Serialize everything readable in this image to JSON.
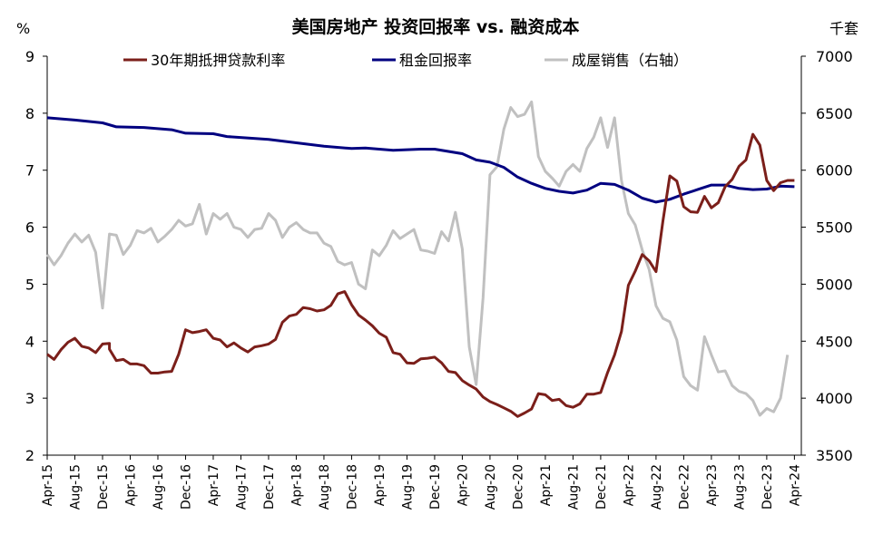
{
  "chart_data": {
    "type": "line",
    "title": "美国房地产 投资回报率 vs. 融资成本",
    "y_left_unit": "%",
    "y_right_unit": "千套",
    "ylim_left": [
      2,
      9
    ],
    "ylim_right": [
      3500,
      7000
    ],
    "y_left_ticks": [
      "2",
      "3",
      "4",
      "5",
      "6",
      "7",
      "8",
      "9"
    ],
    "y_right_ticks": [
      "3500",
      "4000",
      "4500",
      "5000",
      "5500",
      "6000",
      "6500",
      "7000"
    ],
    "x_ticks": [
      "Apr-15",
      "Aug-15",
      "Dec-15",
      "Apr-16",
      "Aug-16",
      "Dec-16",
      "Apr-17",
      "Aug-17",
      "Dec-17",
      "Apr-18",
      "Aug-18",
      "Dec-18",
      "Apr-19",
      "Aug-19",
      "Dec-19",
      "Apr-20",
      "Aug-20",
      "Dec-20",
      "Apr-21",
      "Aug-21",
      "Dec-21",
      "Apr-22",
      "Aug-22",
      "Dec-22",
      "Apr-23",
      "Aug-23",
      "Dec-23",
      "Apr-24"
    ],
    "x_start": "2015-04",
    "x_end": "2024-05",
    "legend_position": "top",
    "series": [
      {
        "name": "30年期抵押贷款利率",
        "axis": "left",
        "color": "#7B1F1A",
        "points": [
          [
            "2015-04",
            3.77
          ],
          [
            "2015-05",
            3.68
          ],
          [
            "2015-06",
            3.85
          ],
          [
            "2015-07",
            3.98
          ],
          [
            "2015-08",
            4.05
          ],
          [
            "2015-09",
            3.91
          ],
          [
            "2015-10",
            3.88
          ],
          [
            "2015-11",
            3.8
          ],
          [
            "2015-12",
            3.95
          ],
          [
            "2015-13",
            3.96
          ],
          [
            "2016-01",
            3.86
          ],
          [
            "2016-02",
            3.66
          ],
          [
            "2016-03",
            3.68
          ],
          [
            "2016-04",
            3.6
          ],
          [
            "2016-05",
            3.6
          ],
          [
            "2016-06",
            3.57
          ],
          [
            "2016-07",
            3.44
          ],
          [
            "2016-08",
            3.44
          ],
          [
            "2016-09",
            3.46
          ],
          [
            "2016-10",
            3.47
          ],
          [
            "2016-11",
            3.77
          ],
          [
            "2016-12",
            4.2
          ],
          [
            "2017-01",
            4.15
          ],
          [
            "2017-02",
            4.17
          ],
          [
            "2017-03",
            4.2
          ],
          [
            "2017-04",
            4.05
          ],
          [
            "2017-05",
            4.02
          ],
          [
            "2017-06",
            3.9
          ],
          [
            "2017-07",
            3.97
          ],
          [
            "2017-08",
            3.88
          ],
          [
            "2017-09",
            3.81
          ],
          [
            "2017-10",
            3.9
          ],
          [
            "2017-11",
            3.92
          ],
          [
            "2017-12",
            3.95
          ],
          [
            "2018-01",
            4.03
          ],
          [
            "2018-02",
            4.33
          ],
          [
            "2018-03",
            4.44
          ],
          [
            "2018-04",
            4.47
          ],
          [
            "2018-05",
            4.59
          ],
          [
            "2018-06",
            4.57
          ],
          [
            "2018-07",
            4.53
          ],
          [
            "2018-08",
            4.55
          ],
          [
            "2018-09",
            4.63
          ],
          [
            "2018-10",
            4.83
          ],
          [
            "2018-11",
            4.87
          ],
          [
            "2018-12",
            4.64
          ],
          [
            "2019-01",
            4.46
          ],
          [
            "2019-02",
            4.37
          ],
          [
            "2019-03",
            4.27
          ],
          [
            "2019-04",
            4.14
          ],
          [
            "2019-05",
            4.07
          ],
          [
            "2019-06",
            3.8
          ],
          [
            "2019-07",
            3.77
          ],
          [
            "2019-08",
            3.62
          ],
          [
            "2019-09",
            3.61
          ],
          [
            "2019-10",
            3.69
          ],
          [
            "2019-11",
            3.7
          ],
          [
            "2019-12",
            3.72
          ],
          [
            "2020-01",
            3.62
          ],
          [
            "2020-02",
            3.47
          ],
          [
            "2020-03",
            3.45
          ],
          [
            "2020-04",
            3.31
          ],
          [
            "2020-05",
            3.23
          ],
          [
            "2020-06",
            3.16
          ],
          [
            "2020-07",
            3.02
          ],
          [
            "2020-08",
            2.94
          ],
          [
            "2020-09",
            2.89
          ],
          [
            "2020-10",
            2.83
          ],
          [
            "2020-11",
            2.77
          ],
          [
            "2020-12",
            2.68
          ],
          [
            "2021-01",
            2.74
          ],
          [
            "2021-02",
            2.81
          ],
          [
            "2021-03",
            3.08
          ],
          [
            "2021-04",
            3.06
          ],
          [
            "2021-05",
            2.96
          ],
          [
            "2021-06",
            2.98
          ],
          [
            "2021-07",
            2.87
          ],
          [
            "2021-08",
            2.84
          ],
          [
            "2021-09",
            2.9
          ],
          [
            "2021-10",
            3.07
          ],
          [
            "2021-11",
            3.07
          ],
          [
            "2021-12",
            3.1
          ],
          [
            "2022-01",
            3.45
          ],
          [
            "2022-02",
            3.76
          ],
          [
            "2022-03",
            4.17
          ],
          [
            "2022-04",
            4.98
          ],
          [
            "2022-05",
            5.23
          ],
          [
            "2022-06",
            5.52
          ],
          [
            "2022-07",
            5.41
          ],
          [
            "2022-08",
            5.22
          ],
          [
            "2022-09",
            6.11
          ],
          [
            "2022-10",
            6.9
          ],
          [
            "2022-11",
            6.81
          ],
          [
            "2022-12",
            6.36
          ],
          [
            "2023-01",
            6.27
          ],
          [
            "2023-02",
            6.26
          ],
          [
            "2023-03",
            6.54
          ],
          [
            "2023-04",
            6.34
          ],
          [
            "2023-05",
            6.43
          ],
          [
            "2023-06",
            6.71
          ],
          [
            "2023-07",
            6.84
          ],
          [
            "2023-08",
            7.07
          ],
          [
            "2023-09",
            7.18
          ],
          [
            "2023-10",
            7.63
          ],
          [
            "2023-11",
            7.44
          ],
          [
            "2023-12",
            6.82
          ],
          [
            "2024-01",
            6.64
          ],
          [
            "2024-02",
            6.78
          ],
          [
            "2024-03",
            6.82
          ],
          [
            "2024-04",
            6.82
          ]
        ]
      },
      {
        "name": "租金回报率",
        "axis": "left",
        "color": "#000080",
        "points": [
          [
            "2015-04",
            7.92
          ],
          [
            "2015-08",
            7.88
          ],
          [
            "2015-12",
            7.83
          ],
          [
            "2016-02",
            7.76
          ],
          [
            "2016-06",
            7.75
          ],
          [
            "2016-10",
            7.71
          ],
          [
            "2016-12",
            7.65
          ],
          [
            "2017-04",
            7.64
          ],
          [
            "2017-06",
            7.59
          ],
          [
            "2017-12",
            7.54
          ],
          [
            "2018-04",
            7.48
          ],
          [
            "2018-08",
            7.42
          ],
          [
            "2018-12",
            7.38
          ],
          [
            "2019-02",
            7.39
          ],
          [
            "2019-06",
            7.35
          ],
          [
            "2019-10",
            7.37
          ],
          [
            "2019-12",
            7.37
          ],
          [
            "2020-04",
            7.29
          ],
          [
            "2020-06",
            7.18
          ],
          [
            "2020-08",
            7.14
          ],
          [
            "2020-10",
            7.05
          ],
          [
            "2020-12",
            6.88
          ],
          [
            "2021-02",
            6.77
          ],
          [
            "2021-04",
            6.68
          ],
          [
            "2021-06",
            6.63
          ],
          [
            "2021-08",
            6.6
          ],
          [
            "2021-10",
            6.65
          ],
          [
            "2021-12",
            6.77
          ],
          [
            "2022-02",
            6.75
          ],
          [
            "2022-04",
            6.65
          ],
          [
            "2022-06",
            6.51
          ],
          [
            "2022-08",
            6.44
          ],
          [
            "2022-10",
            6.49
          ],
          [
            "2022-12",
            6.58
          ],
          [
            "2023-02",
            6.66
          ],
          [
            "2023-04",
            6.74
          ],
          [
            "2023-06",
            6.74
          ],
          [
            "2023-08",
            6.68
          ],
          [
            "2023-10",
            6.66
          ],
          [
            "2023-12",
            6.67
          ],
          [
            "2024-02",
            6.72
          ],
          [
            "2024-04",
            6.71
          ]
        ]
      },
      {
        "name": "成屋销售（右轴）",
        "axis": "right",
        "color": "#C0C0C0",
        "points": [
          [
            "2015-04",
            5260
          ],
          [
            "2015-05",
            5170
          ],
          [
            "2015-06",
            5250
          ],
          [
            "2015-07",
            5360
          ],
          [
            "2015-08",
            5440
          ],
          [
            "2015-09",
            5370
          ],
          [
            "2015-10",
            5430
          ],
          [
            "2015-11",
            5280
          ],
          [
            "2015-12",
            4790
          ],
          [
            "2016-01",
            5440
          ],
          [
            "2016-02",
            5430
          ],
          [
            "2016-03",
            5260
          ],
          [
            "2016-04",
            5340
          ],
          [
            "2016-05",
            5470
          ],
          [
            "2016-06",
            5450
          ],
          [
            "2016-07",
            5490
          ],
          [
            "2016-08",
            5370
          ],
          [
            "2016-09",
            5420
          ],
          [
            "2016-10",
            5480
          ],
          [
            "2016-11",
            5560
          ],
          [
            "2016-12",
            5510
          ],
          [
            "2017-01",
            5530
          ],
          [
            "2017-02",
            5700
          ],
          [
            "2017-03",
            5440
          ],
          [
            "2017-04",
            5620
          ],
          [
            "2017-05",
            5570
          ],
          [
            "2017-06",
            5620
          ],
          [
            "2017-07",
            5500
          ],
          [
            "2017-08",
            5480
          ],
          [
            "2017-09",
            5410
          ],
          [
            "2017-10",
            5480
          ],
          [
            "2017-11",
            5490
          ],
          [
            "2017-12",
            5620
          ],
          [
            "2018-01",
            5560
          ],
          [
            "2018-02",
            5410
          ],
          [
            "2018-03",
            5500
          ],
          [
            "2018-04",
            5540
          ],
          [
            "2018-05",
            5480
          ],
          [
            "2018-06",
            5450
          ],
          [
            "2018-07",
            5450
          ],
          [
            "2018-08",
            5360
          ],
          [
            "2018-09",
            5330
          ],
          [
            "2018-10",
            5200
          ],
          [
            "2018-11",
            5170
          ],
          [
            "2018-12",
            5190
          ],
          [
            "2019-01",
            5000
          ],
          [
            "2019-02",
            4960
          ],
          [
            "2019-03",
            5300
          ],
          [
            "2019-04",
            5250
          ],
          [
            "2019-05",
            5340
          ],
          [
            "2019-06",
            5470
          ],
          [
            "2019-07",
            5400
          ],
          [
            "2019-08",
            5440
          ],
          [
            "2019-09",
            5480
          ],
          [
            "2019-10",
            5300
          ],
          [
            "2019-11",
            5290
          ],
          [
            "2019-12",
            5270
          ],
          [
            "2020-01",
            5460
          ],
          [
            "2020-02",
            5380
          ],
          [
            "2020-03",
            5630
          ],
          [
            "2020-04",
            5310
          ],
          [
            "2020-05",
            4450
          ],
          [
            "2020-06",
            4120
          ],
          [
            "2020-07",
            4880
          ],
          [
            "2020-08",
            5960
          ],
          [
            "2020-09",
            6030
          ],
          [
            "2020-10",
            6360
          ],
          [
            "2020-11",
            6550
          ],
          [
            "2020-12",
            6470
          ],
          [
            "2021-01",
            6490
          ],
          [
            "2021-02",
            6600
          ],
          [
            "2021-03",
            6120
          ],
          [
            "2021-04",
            5990
          ],
          [
            "2021-05",
            5930
          ],
          [
            "2021-06",
            5860
          ],
          [
            "2021-07",
            5990
          ],
          [
            "2021-08",
            6050
          ],
          [
            "2021-09",
            5990
          ],
          [
            "2021-10",
            6190
          ],
          [
            "2021-11",
            6290
          ],
          [
            "2021-12",
            6460
          ],
          [
            "2022-01",
            6200
          ],
          [
            "2022-02",
            6460
          ],
          [
            "2022-03",
            5910
          ],
          [
            "2022-04",
            5620
          ],
          [
            "2022-05",
            5520
          ],
          [
            "2022-06",
            5300
          ],
          [
            "2022-07",
            5130
          ],
          [
            "2022-08",
            4810
          ],
          [
            "2022-09",
            4700
          ],
          [
            "2022-10",
            4670
          ],
          [
            "2022-11",
            4510
          ],
          [
            "2022-12",
            4190
          ],
          [
            "2023-01",
            4110
          ],
          [
            "2023-02",
            4070
          ],
          [
            "2023-03",
            4540
          ],
          [
            "2023-04",
            4380
          ],
          [
            "2023-05",
            4230
          ],
          [
            "2023-06",
            4240
          ],
          [
            "2023-07",
            4110
          ],
          [
            "2023-08",
            4060
          ],
          [
            "2023-09",
            4040
          ],
          [
            "2023-10",
            3980
          ],
          [
            "2023-11",
            3850
          ],
          [
            "2023-12",
            3910
          ],
          [
            "2024-01",
            3880
          ],
          [
            "2024-02",
            4000
          ],
          [
            "2024-03",
            4380
          ]
        ]
      }
    ]
  }
}
